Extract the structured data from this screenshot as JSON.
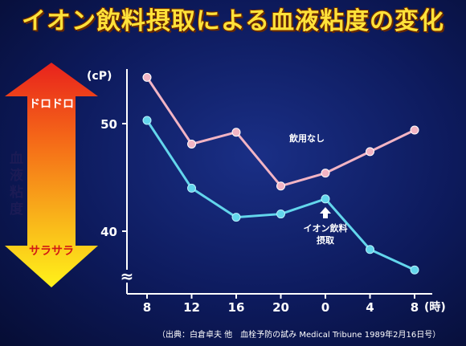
{
  "title": "イオン飲料摂取による血液粘度の変化",
  "viscosity_arrow": {
    "top_label": "ドロドロ",
    "bottom_label": "サラサラ",
    "side_label": "血液粘度"
  },
  "source": "（出典：白倉卓夫 他　血栓予防の試み Medical Tribune 1989年2月16日号）",
  "chart_data": {
    "type": "line",
    "ylabel": "(cP)",
    "xlabel": "",
    "xunit": "(時)",
    "x": [
      "8",
      "12",
      "16",
      "20",
      "0",
      "4",
      "8"
    ],
    "y_ticks": [
      40,
      50
    ],
    "ylim": [
      36,
      55
    ],
    "axis_break": "≈",
    "colors": {
      "no_drink": "#f2b4c4",
      "ion_drink": "#63d6ec"
    },
    "series": [
      {
        "name": "飲用なし",
        "values": [
          54.3,
          48.1,
          49.2,
          44.2,
          45.4,
          47.4,
          49.4
        ]
      },
      {
        "name": "イオン飲料摂取",
        "values": [
          50.3,
          44.0,
          41.3,
          41.6,
          43.0,
          38.3,
          36.4
        ]
      }
    ],
    "annotations": [
      {
        "text": "飲用なし",
        "series": 0
      },
      {
        "text": "イオン飲料",
        "series": 1
      },
      {
        "text": "摂取",
        "series": 1
      }
    ]
  }
}
